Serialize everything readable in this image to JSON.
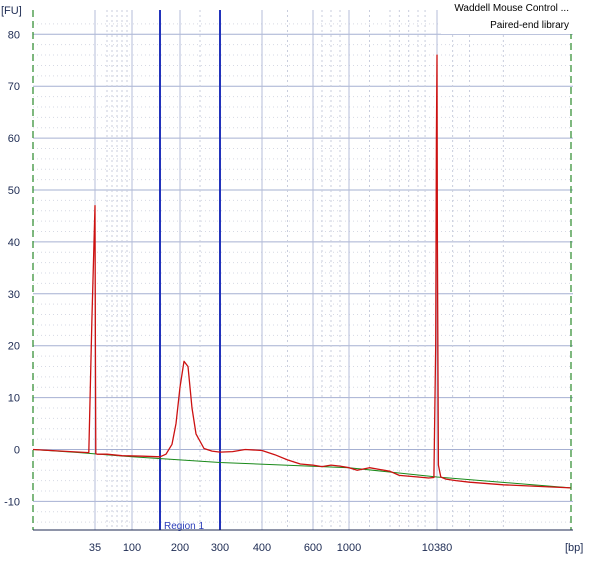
{
  "chart_data": {
    "type": "line",
    "title": "",
    "ylabel": "[FU]",
    "xlabel": "[bp]",
    "ylim": [
      -15,
      83
    ],
    "yticks": [
      -10,
      0,
      10,
      20,
      30,
      40,
      50,
      60,
      70,
      80
    ],
    "xticks": [
      "35",
      "100",
      "200",
      "300",
      "400",
      "600",
      "1000",
      "10380"
    ],
    "legend": [
      "Waddell Mouse Control ...",
      "Paired-end library"
    ],
    "legend_position": "top-right",
    "grid": true,
    "region": {
      "label": "Region 1",
      "start_bp": 150,
      "end_bp": 300
    },
    "markers_bp": [
      35,
      10380
    ],
    "series": [
      {
        "color": "#cc1111",
        "x": [
          15,
          30,
          33,
          34,
          35,
          35.5,
          36,
          38,
          50,
          80,
          120,
          150,
          165,
          180,
          190,
          200,
          210,
          220,
          230,
          240,
          260,
          280,
          300,
          330,
          360,
          400,
          450,
          500,
          550,
          600,
          700,
          800,
          900,
          1000,
          1200,
          1500,
          2000,
          3000,
          5000,
          8000,
          9500,
          10000,
          10200,
          10380,
          10500,
          10800,
          11500,
          13000,
          16000,
          20000,
          30000,
          50000
        ],
        "values": [
          0,
          -0.5,
          -0.6,
          25,
          47,
          20,
          -0.8,
          -0.9,
          -0.9,
          -1.2,
          -1.3,
          -1.4,
          -0.9,
          1,
          5,
          12,
          17,
          16,
          8,
          3,
          0.2,
          -0.3,
          -0.5,
          -0.4,
          0,
          -0.2,
          -1,
          -2,
          -2.8,
          -3,
          -3.3,
          -3,
          -3.2,
          -3.5,
          -4,
          -3.5,
          -4.2,
          -5,
          -5.3,
          -5.5,
          -5.4,
          20,
          60,
          76,
          40,
          -3,
          -5.3,
          -5.7,
          -6,
          -6.3,
          -6.8,
          -7.4
        ]
      },
      {
        "color": "#1a8a1a",
        "x": [
          15,
          30,
          100,
          300,
          1000,
          10380,
          50000
        ],
        "values": [
          0,
          -0.6,
          -1.4,
          -2.5,
          -3.5,
          -5.3,
          -7.4
        ]
      }
    ]
  }
}
